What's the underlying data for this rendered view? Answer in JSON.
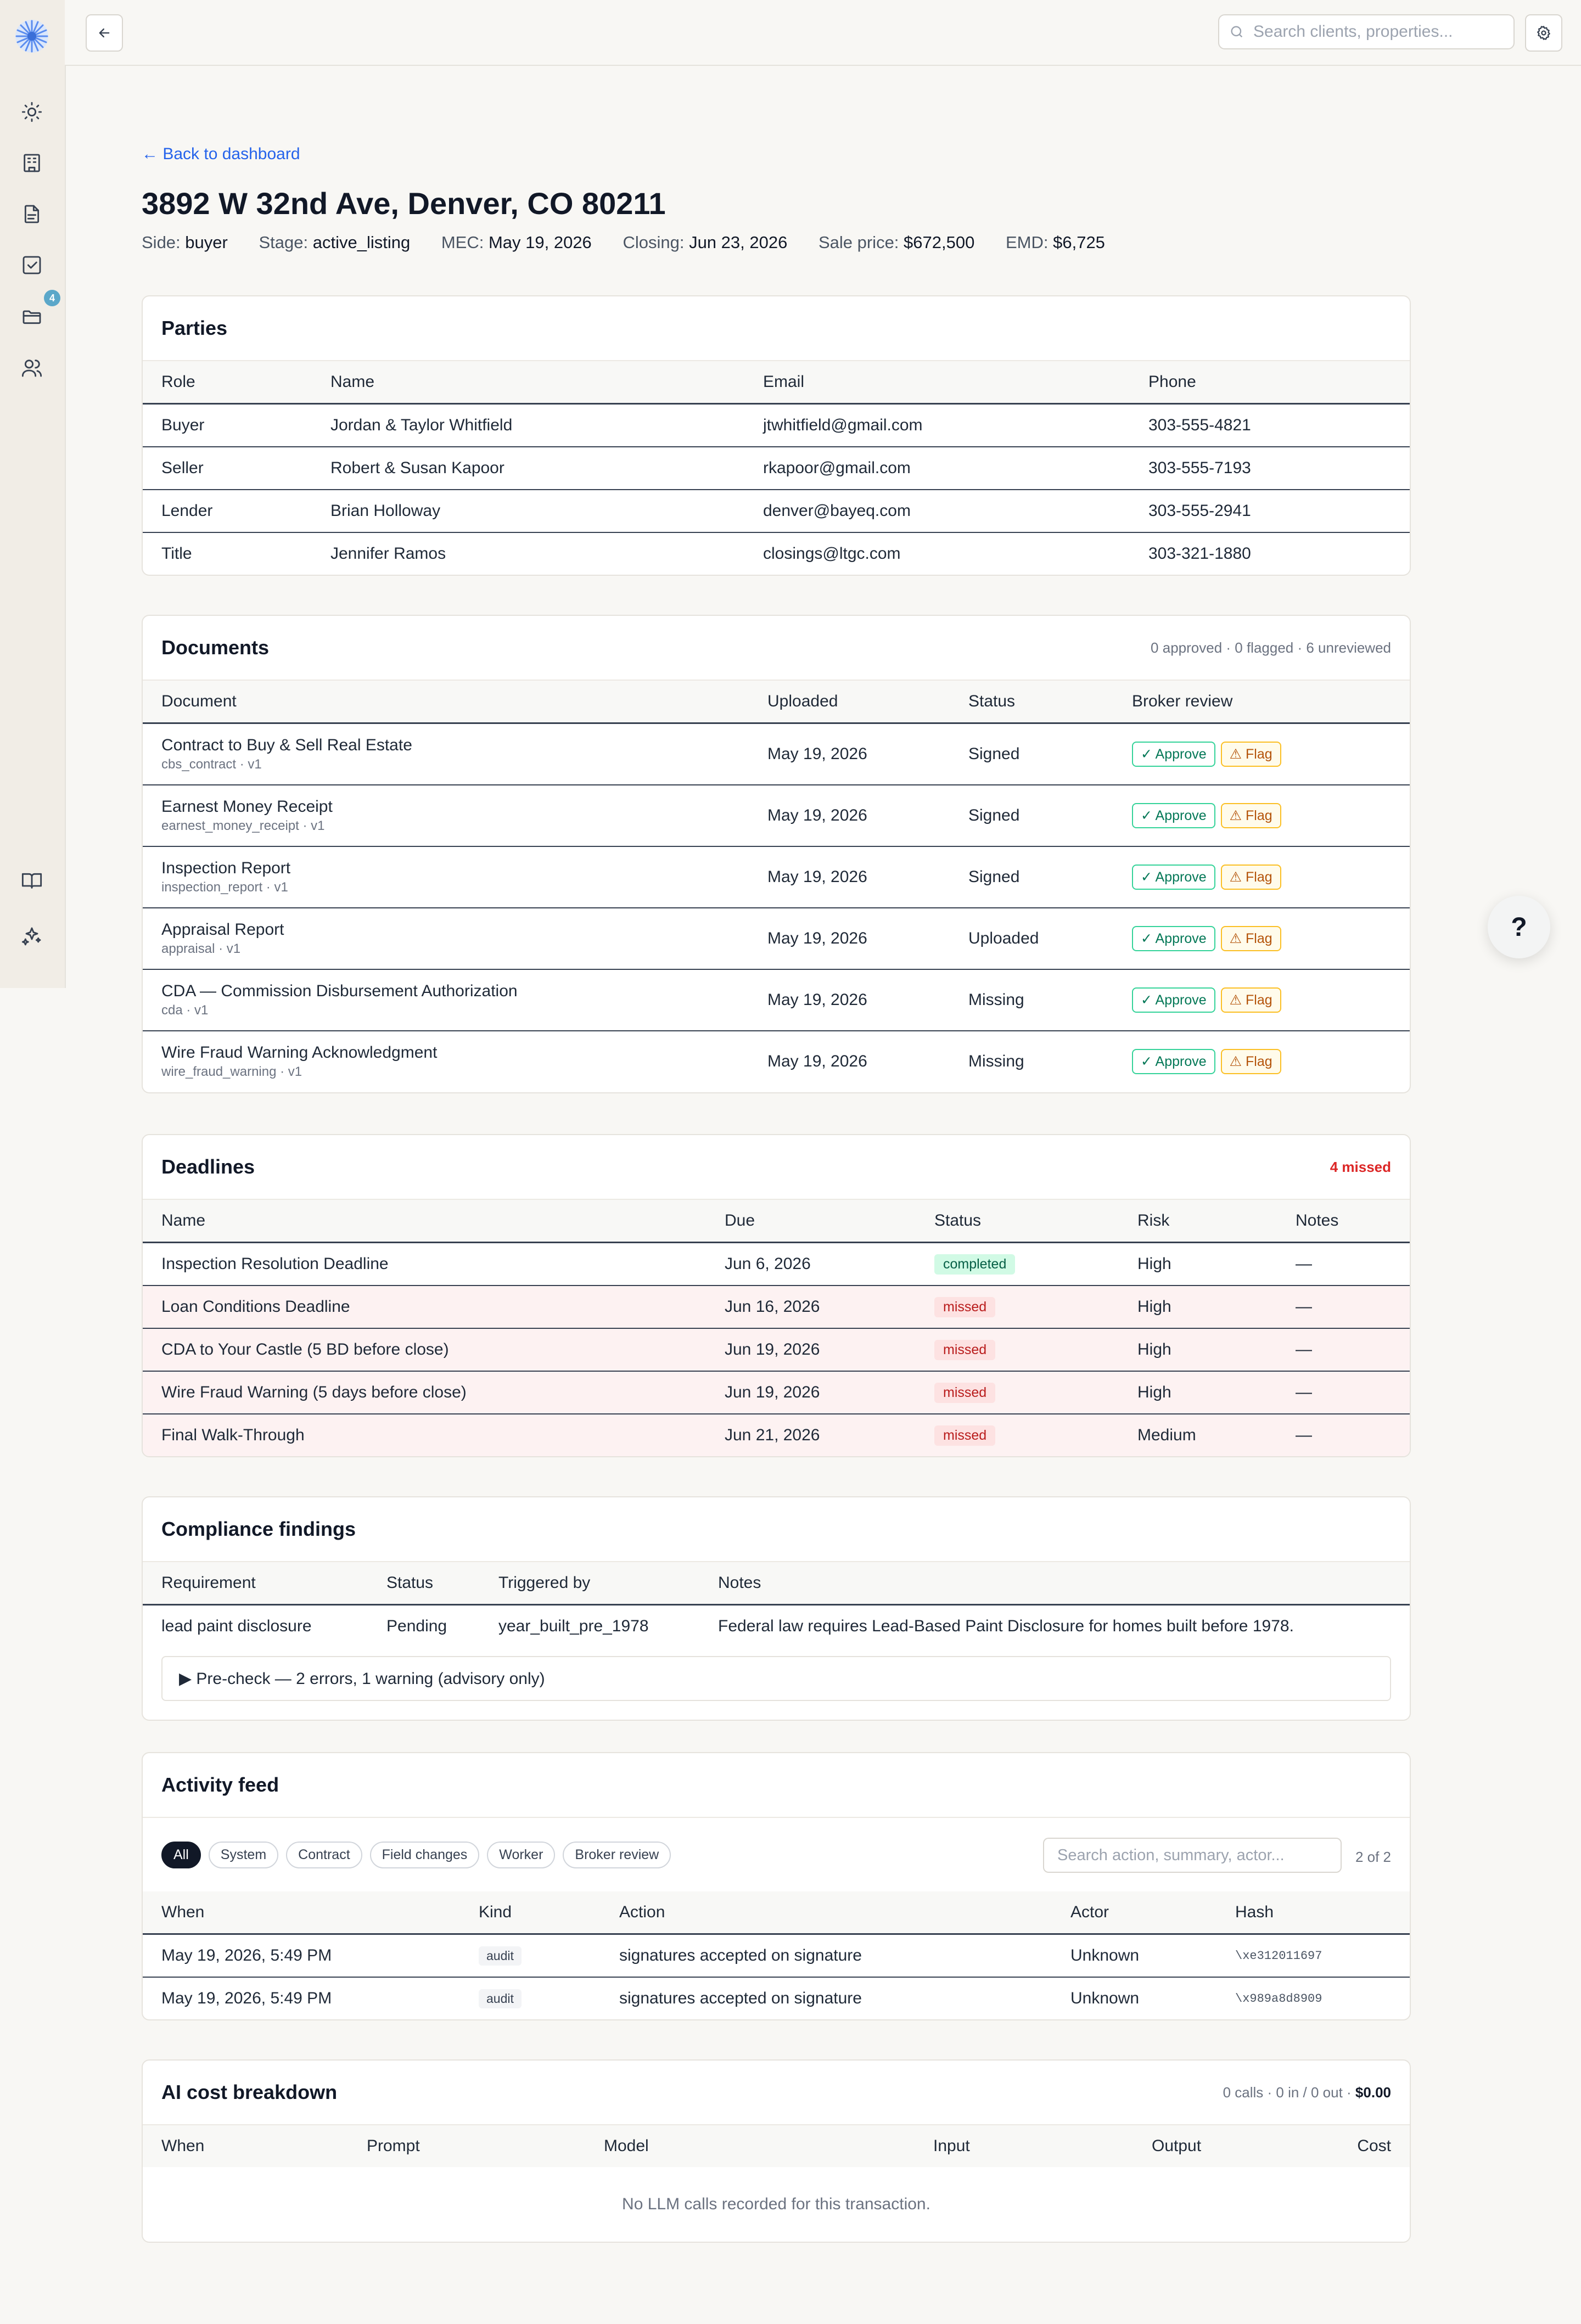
{
  "sidebar": {
    "folder_badge": "4"
  },
  "topbar": {
    "search_placeholder": "Search clients, properties..."
  },
  "page": {
    "back_link": "← Back to dashboard",
    "title": "3892 W 32nd Ave, Denver, CO 80211",
    "meta": [
      {
        "label": "Side:",
        "value": "buyer"
      },
      {
        "label": "Stage:",
        "value": "active_listing"
      },
      {
        "label": "MEC:",
        "value": "May 19, 2026"
      },
      {
        "label": "Closing:",
        "value": "Jun 23, 2026"
      },
      {
        "label": "Sale price:",
        "value": "$672,500"
      },
      {
        "label": "EMD:",
        "value": "$6,725"
      }
    ]
  },
  "parties": {
    "title": "Parties",
    "headers": [
      "Role",
      "Name",
      "Email",
      "Phone"
    ],
    "rows": [
      [
        "Buyer",
        "Jordan & Taylor Whitfield",
        "jtwhitfield@gmail.com",
        "303-555-4821"
      ],
      [
        "Seller",
        "Robert & Susan Kapoor",
        "rkapoor@gmail.com",
        "303-555-7193"
      ],
      [
        "Lender",
        "Brian Holloway",
        "denver@bayeq.com",
        "303-555-2941"
      ],
      [
        "Title",
        "Jennifer Ramos",
        "closings@ltgc.com",
        "303-321-1880"
      ]
    ]
  },
  "documents": {
    "title": "Documents",
    "summary": "0 approved · 0 flagged · 6 unreviewed",
    "headers": [
      "Document",
      "Uploaded",
      "Status",
      "Broker review"
    ],
    "approve_label": "✓ Approve",
    "flag_label": "⚠ Flag",
    "rows": [
      {
        "name": "Contract to Buy & Sell Real Estate",
        "sub": "cbs_contract · v1",
        "uploaded": "May 19, 2026",
        "status": "Signed"
      },
      {
        "name": "Earnest Money Receipt",
        "sub": "earnest_money_receipt · v1",
        "uploaded": "May 19, 2026",
        "status": "Signed"
      },
      {
        "name": "Inspection Report",
        "sub": "inspection_report · v1",
        "uploaded": "May 19, 2026",
        "status": "Signed"
      },
      {
        "name": "Appraisal Report",
        "sub": "appraisal · v1",
        "uploaded": "May 19, 2026",
        "status": "Uploaded"
      },
      {
        "name": "CDA — Commission Disbursement Authorization",
        "sub": "cda · v1",
        "uploaded": "May 19, 2026",
        "status": "Missing"
      },
      {
        "name": "Wire Fraud Warning Acknowledgment",
        "sub": "wire_fraud_warning · v1",
        "uploaded": "May 19, 2026",
        "status": "Missing"
      }
    ]
  },
  "deadlines": {
    "title": "Deadlines",
    "summary": "4 missed",
    "headers": [
      "Name",
      "Due",
      "Status",
      "Risk",
      "Notes"
    ],
    "rows": [
      {
        "name": "Inspection Resolution Deadline",
        "due": "Jun 6, 2026",
        "status": "completed",
        "risk": "High",
        "notes": "—"
      },
      {
        "name": "Loan Conditions Deadline",
        "due": "Jun 16, 2026",
        "status": "missed",
        "risk": "High",
        "notes": "—"
      },
      {
        "name": "CDA to Your Castle (5 BD before close)",
        "due": "Jun 19, 2026",
        "status": "missed",
        "risk": "High",
        "notes": "—"
      },
      {
        "name": "Wire Fraud Warning (5 days before close)",
        "due": "Jun 19, 2026",
        "status": "missed",
        "risk": "High",
        "notes": "—"
      },
      {
        "name": "Final Walk-Through",
        "due": "Jun 21, 2026",
        "status": "missed",
        "risk": "Medium",
        "notes": "—"
      }
    ]
  },
  "compliance": {
    "title": "Compliance findings",
    "headers": [
      "Requirement",
      "Status",
      "Triggered by",
      "Notes"
    ],
    "rows": [
      [
        "lead paint disclosure",
        "Pending",
        "year_built_pre_1978",
        "Federal law requires Lead-Based Paint Disclosure for homes built before 1978."
      ]
    ],
    "precheck": "▶  Pre-check — 2 errors, 1 warning (advisory only)"
  },
  "activity": {
    "title": "Activity feed",
    "filters": [
      "All",
      "System",
      "Contract",
      "Field changes",
      "Worker",
      "Broker review"
    ],
    "search_placeholder": "Search action, summary, actor...",
    "count": "2 of 2",
    "headers": [
      "When",
      "Kind",
      "Action",
      "Actor",
      "Hash"
    ],
    "rows": [
      [
        "May 19, 2026, 5:49 PM",
        "audit",
        "signatures accepted on signature",
        "Unknown",
        "\\xe312011697"
      ],
      [
        "May 19, 2026, 5:49 PM",
        "audit",
        "signatures accepted on signature",
        "Unknown",
        "\\x989a8d8909"
      ]
    ]
  },
  "ai_cost": {
    "title": "AI cost breakdown",
    "summary": "0 calls · 0 in / 0 out ·",
    "total": "$0.00",
    "headers": [
      "When",
      "Prompt",
      "Model",
      "Input",
      "Output",
      "Cost"
    ],
    "empty": "No LLM calls recorded for this transaction."
  },
  "help_label": "?"
}
